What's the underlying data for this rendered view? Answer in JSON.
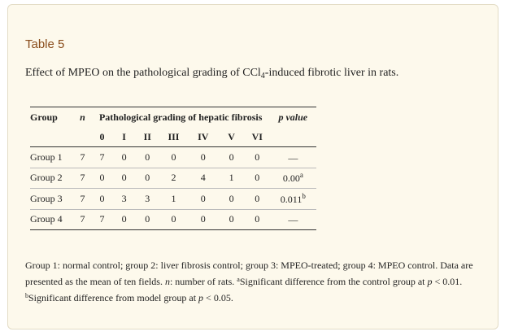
{
  "table_label": "Table 5",
  "caption": {
    "before": "Effect of MPEO on the pathological grading of CCl",
    "subscript": "4",
    "after": "-induced fibrotic liver in rats."
  },
  "header": {
    "group": "Group",
    "n": "n",
    "grading": "Pathological grading of hepatic fibrosis",
    "p_value": "p value",
    "grades": [
      "0",
      "I",
      "II",
      "III",
      "IV",
      "V",
      "VI"
    ]
  },
  "rows": [
    {
      "group": "Group 1",
      "n": "7",
      "grades": [
        "7",
        "0",
        "0",
        "0",
        "0",
        "0",
        "0"
      ],
      "p": "—",
      "sup": ""
    },
    {
      "group": "Group 2",
      "n": "7",
      "grades": [
        "0",
        "0",
        "0",
        "2",
        "4",
        "1",
        "0"
      ],
      "p": "0.00",
      "sup": "a"
    },
    {
      "group": "Group 3",
      "n": "7",
      "grades": [
        "0",
        "3",
        "3",
        "1",
        "0",
        "0",
        "0"
      ],
      "p": "0.011",
      "sup": "b"
    },
    {
      "group": "Group 4",
      "n": "7",
      "grades": [
        "7",
        "0",
        "0",
        "0",
        "0",
        "0",
        "0"
      ],
      "p": "—",
      "sup": ""
    }
  ],
  "footnote": {
    "line1": "Group 1: normal control; group 2: liver fibrosis control; group 3: MPEO-treated; group 4: MPEO control.",
    "line2_a": "Data are presented as the mean of ten fields. ",
    "n_symbol": "n",
    "line2_b": ": number of rats. ",
    "sup_a": "a",
    "sig_a_text": "Significant difference from the control group at ",
    "p1": "p",
    "sig_a_value": " < 0.01. ",
    "sup_b": "b",
    "sig_b_text": "Significant difference from model group at ",
    "p2": "p",
    "sig_b_value": " < 0.05."
  }
}
